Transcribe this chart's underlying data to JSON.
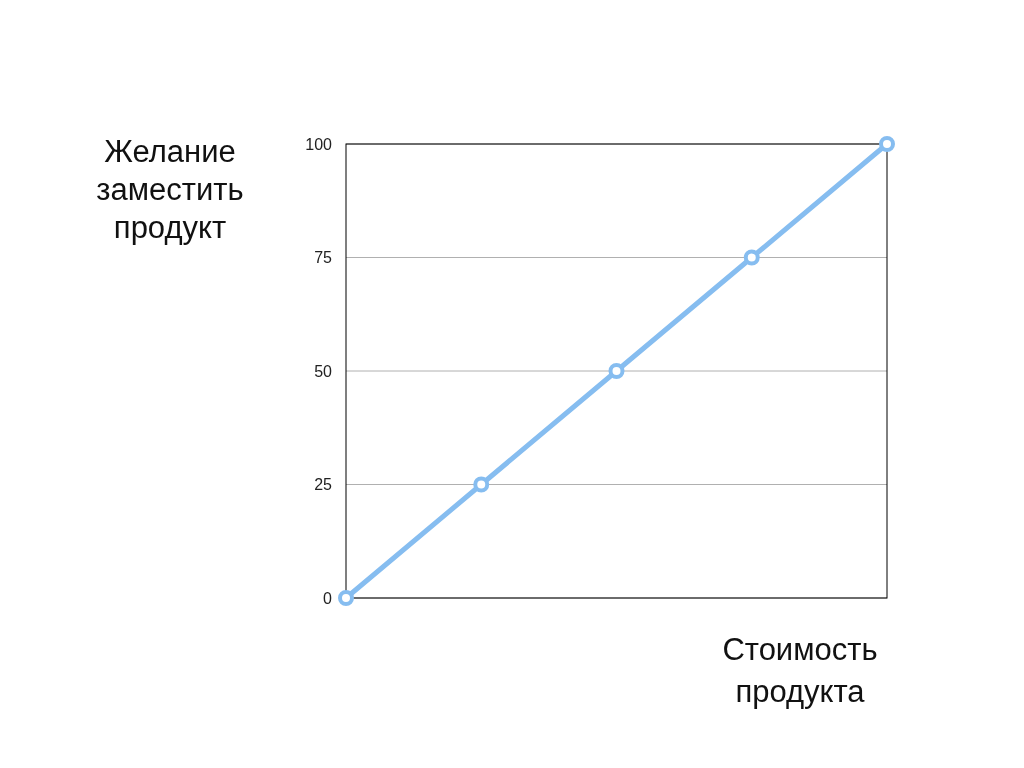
{
  "chart_data": {
    "type": "line",
    "xlabel": "Стоимость\nпродукта",
    "ylabel": "Желание\nзаместить\nпродукт",
    "categories": [
      null,
      null,
      null,
      null,
      null
    ],
    "series": [
      {
        "color": "#86bdf0",
        "values": [
          0,
          25,
          50,
          75,
          100
        ]
      }
    ],
    "ylim": [
      0,
      100
    ],
    "yticks": [
      0,
      25,
      50,
      75,
      100
    ],
    "grid": "y",
    "marker": "circle",
    "line_style": "solid"
  }
}
